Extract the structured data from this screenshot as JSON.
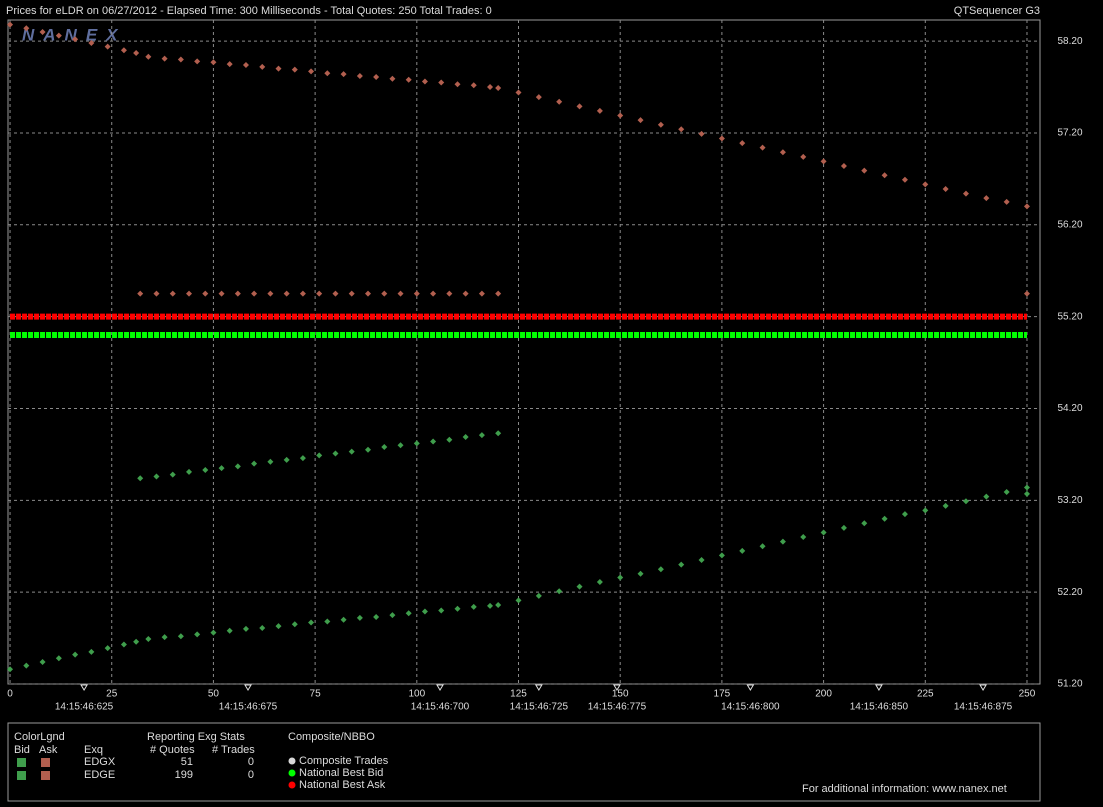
{
  "header": {
    "title": "Prices for  eLDR  on  06/27/2012  -  Elapsed Time: 300 Milliseconds  -  Total Quotes: 250  Total Trades: 0",
    "app": "QTSequencer G3",
    "logo": "NANEX"
  },
  "chart_data": {
    "type": "scatter",
    "xlim": [
      -0.5,
      253.2
    ],
    "ylim": [
      51.2,
      58.43
    ],
    "xticks": [
      0,
      25,
      50,
      75,
      100,
      125,
      150,
      175,
      200,
      225,
      250
    ],
    "yticks": [
      {
        "value": 51.2,
        "label": "51.20"
      },
      {
        "value": 52.2,
        "label": "52.20"
      },
      {
        "value": 53.2,
        "label": "53.20"
      },
      {
        "value": 54.2,
        "label": "54.20"
      },
      {
        "value": 55.2,
        "label": "55.20"
      },
      {
        "value": 56.2,
        "label": "56.20"
      },
      {
        "value": 57.2,
        "label": "57.20"
      },
      {
        "value": 58.2,
        "label": "58.20"
      }
    ],
    "time_ticks": [
      {
        "value": 18.2,
        "label": "14:15:46:625"
      },
      {
        "value": 58.5,
        "label": "14:15:46:675"
      },
      {
        "value": 105.7,
        "label": "14:15:46:700"
      },
      {
        "value": 130,
        "label": "14:15:46:725"
      },
      {
        "value": 149.2,
        "label": "14:15:46:775"
      },
      {
        "value": 182,
        "label": "14:15:46:800"
      },
      {
        "value": 213.6,
        "label": "14:15:46:850"
      },
      {
        "value": 239.2,
        "label": "14:15:46:875"
      }
    ],
    "grid": true,
    "series": [
      {
        "color": "#b25f4f",
        "style": "markers",
        "x": [
          0,
          4,
          8,
          12,
          16,
          20,
          24,
          28,
          31,
          34,
          38,
          42,
          46,
          50,
          54,
          58,
          62,
          66,
          70,
          74,
          78,
          82,
          86,
          90,
          94,
          98,
          102,
          106,
          110,
          114,
          118,
          120,
          125,
          130,
          135,
          140,
          145,
          150,
          155,
          160,
          165,
          170,
          175,
          180,
          185,
          190,
          195,
          200,
          205,
          210,
          215,
          220,
          225,
          230,
          235,
          240,
          245,
          250
        ],
        "values": [
          58.38,
          58.34,
          58.3,
          58.26,
          58.22,
          58.18,
          58.14,
          58.1,
          58.07,
          58.03,
          58.01,
          58.0,
          57.98,
          57.97,
          57.95,
          57.94,
          57.92,
          57.9,
          57.89,
          57.87,
          57.85,
          57.84,
          57.82,
          57.81,
          57.79,
          57.78,
          57.76,
          57.75,
          57.73,
          57.72,
          57.7,
          57.69,
          57.64,
          57.59,
          57.54,
          57.49,
          57.44,
          57.39,
          57.34,
          57.29,
          57.24,
          57.19,
          57.14,
          57.09,
          57.04,
          56.99,
          56.94,
          56.89,
          56.84,
          56.79,
          56.74,
          56.69,
          56.64,
          56.59,
          56.54,
          56.49,
          56.45,
          56.4
        ]
      },
      {
        "color": "#3f9e4c",
        "style": "markers",
        "x": [
          0,
          4,
          8,
          12,
          16,
          20,
          24,
          28,
          31,
          34,
          38,
          42,
          46,
          50,
          54,
          58,
          62,
          66,
          70,
          74,
          78,
          82,
          86,
          90,
          94,
          98,
          102,
          106,
          110,
          114,
          118,
          120,
          125,
          130,
          135,
          140,
          145,
          150,
          155,
          160,
          165,
          170,
          175,
          180,
          185,
          190,
          195,
          200,
          205,
          210,
          215,
          220,
          225,
          230,
          235,
          240,
          245,
          250
        ],
        "values": [
          51.36,
          51.4,
          51.44,
          51.48,
          51.52,
          51.55,
          51.59,
          51.63,
          51.66,
          51.69,
          51.71,
          51.72,
          51.74,
          51.76,
          51.78,
          51.8,
          51.81,
          51.83,
          51.85,
          51.87,
          51.88,
          51.9,
          51.92,
          51.93,
          51.95,
          51.97,
          51.99,
          52.0,
          52.02,
          52.04,
          52.05,
          52.06,
          52.11,
          52.16,
          52.21,
          52.26,
          52.31,
          52.36,
          52.4,
          52.45,
          52.5,
          52.55,
          52.6,
          52.65,
          52.7,
          52.75,
          52.8,
          52.85,
          52.9,
          52.95,
          53.0,
          53.05,
          53.09,
          53.14,
          53.19,
          53.24,
          53.29,
          53.34
        ]
      },
      {
        "color": "#b25f4f",
        "style": "markers",
        "x": [
          32,
          36,
          40,
          44,
          48,
          52,
          56,
          60,
          64,
          68,
          72,
          76,
          80,
          84,
          88,
          92,
          96,
          100,
          104,
          108,
          112,
          116,
          120,
          250
        ],
        "values": [
          55.45,
          55.45,
          55.45,
          55.45,
          55.45,
          55.45,
          55.45,
          55.45,
          55.45,
          55.45,
          55.45,
          55.45,
          55.45,
          55.45,
          55.45,
          55.45,
          55.45,
          55.45,
          55.45,
          55.45,
          55.45,
          55.45,
          55.45,
          55.45
        ]
      },
      {
        "color": "#3f9e4c",
        "style": "markers",
        "x": [
          32,
          36,
          40,
          44,
          48,
          52,
          56,
          60,
          64,
          68,
          72,
          76,
          80,
          84,
          88,
          92,
          96,
          100,
          104,
          108,
          112,
          116,
          120,
          250
        ],
        "values": [
          53.44,
          53.46,
          53.48,
          53.51,
          53.53,
          53.55,
          53.57,
          53.6,
          53.62,
          53.64,
          53.66,
          53.69,
          53.71,
          53.73,
          53.75,
          53.78,
          53.8,
          53.82,
          53.84,
          53.86,
          53.89,
          53.91,
          53.93,
          53.27
        ]
      },
      {
        "name": "Composite Trades",
        "color": "#d8d8d8",
        "style": "markers",
        "x": [],
        "values": []
      },
      {
        "name": "National Best Bid",
        "color": "#00ff00",
        "style": "line",
        "x": [
          0,
          250
        ],
        "values": [
          55.0,
          55.0
        ]
      },
      {
        "name": "National Best Ask",
        "color": "#ff0000",
        "style": "line",
        "x": [
          0,
          250
        ],
        "values": [
          55.2,
          55.2
        ]
      }
    ]
  },
  "legend_panel": {
    "title": "ColorLgnd",
    "bid": "Bid",
    "ask": "Ask",
    "exchange_header": "Exq",
    "stats_title": "Reporting Exg Stats",
    "quotes_header": "# Quotes",
    "trades_header": "# Trades",
    "rows": [
      {
        "exchange": "EDGX",
        "bid_color": "#3f9e4c",
        "ask_color": "#b25f4f",
        "quotes": 51,
        "trades": 0
      },
      {
        "exchange": "EDGE",
        "bid_color": "#3f9e4c",
        "ask_color": "#b25f4f",
        "quotes": 199,
        "trades": 0
      }
    ],
    "composite_title": "Composite/NBBO",
    "footer": "For additional information: www.nanex.net"
  }
}
